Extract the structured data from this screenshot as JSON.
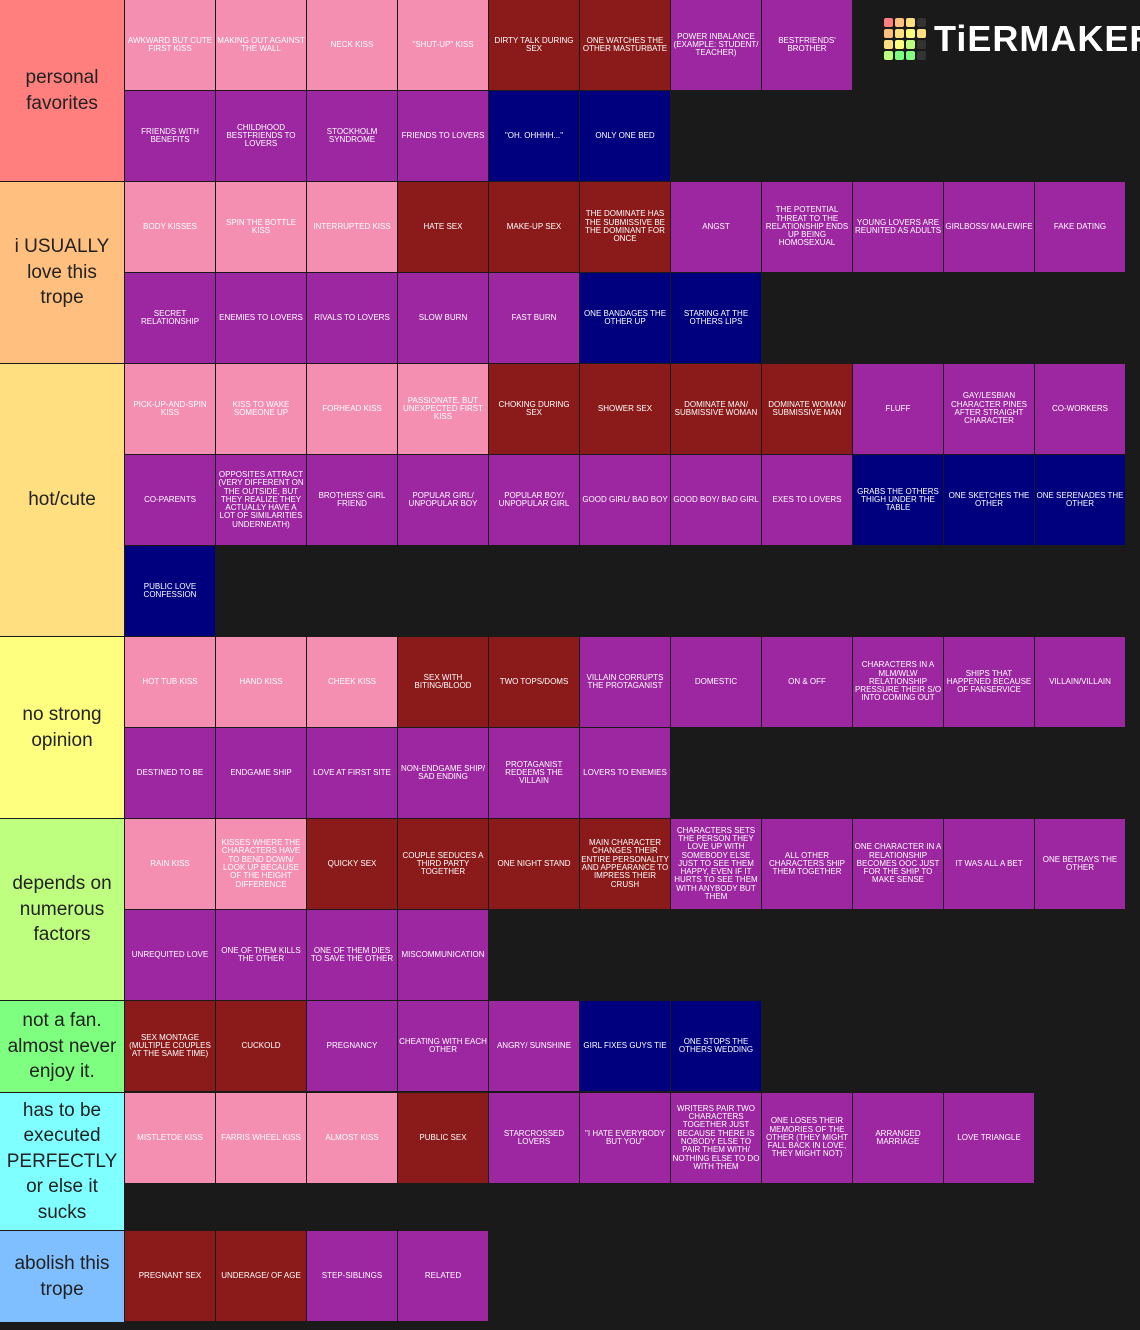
{
  "logo": "TiERMAKER",
  "tiers": [
    {
      "label": "personal favorites",
      "color": "#ff7f7f",
      "items": [
        {
          "text": "AWKWARD BUT CUTE FIRST KISS",
          "color": "#f48fb1"
        },
        {
          "text": "MAKING OUT AGAINST THE WALL",
          "color": "#f48fb1"
        },
        {
          "text": "NECK KISS",
          "color": "#f48fb1"
        },
        {
          "text": "\"SHUT-UP\" KISS",
          "color": "#f48fb1"
        },
        {
          "text": "DIRTY TALK DURING SEX",
          "color": "#8b1a1a"
        },
        {
          "text": "ONE WATCHES THE OTHER MASTURBATE",
          "color": "#8b1a1a"
        },
        {
          "text": "POWER INBALANCE (EXAMPLE: STUDENT/ TEACHER)",
          "color": "#9c27a0"
        },
        {
          "text": "BESTFRIENDS' BROTHER",
          "color": "#9c27a0"
        },
        {
          "text": "FRIENDS WITH BENEFITS",
          "color": "#9c27a0"
        },
        {
          "text": "CHILDHOOD BESTFRIENDS TO LOVERS",
          "color": "#9c27a0"
        },
        {
          "text": "STOCKHOLM SYNDROME",
          "color": "#9c27a0"
        },
        {
          "text": "FRIENDS TO LOVERS",
          "color": "#9c27a0"
        },
        {
          "text": "\"oh. OHHHH...\"",
          "color": "#00007f"
        },
        {
          "text": "ONLY ONE BED",
          "color": "#00007f"
        }
      ]
    },
    {
      "label": "i USUALLY love this trope",
      "color": "#ffbf7f",
      "items": [
        {
          "text": "BODY KISSES",
          "color": "#f48fb1"
        },
        {
          "text": "SPIN THE BOTTLE KISS",
          "color": "#f48fb1"
        },
        {
          "text": "INTERRUPTED KISS",
          "color": "#f48fb1"
        },
        {
          "text": "HATE SEX",
          "color": "#8b1a1a"
        },
        {
          "text": "MAKE-UP SEX",
          "color": "#8b1a1a"
        },
        {
          "text": "THE DOMINATE HAS THE SUBMISSIVE BE THE DOMINANT FOR ONCE",
          "color": "#8b1a1a"
        },
        {
          "text": "ANGST",
          "color": "#9c27a0"
        },
        {
          "text": "THE POTENTIAL THREAT TO THE RELATIONSHIP ENDS UP BEING HOMOSEXUAL",
          "color": "#9c27a0"
        },
        {
          "text": "YOUNG LOVERS ARE REUNITED AS ADULTS",
          "color": "#9c27a0"
        },
        {
          "text": "GIRLBOSS/ MALEWIFE",
          "color": "#9c27a0"
        },
        {
          "text": "FAKE DATING",
          "color": "#9c27a0"
        },
        {
          "text": "SECRET RELATIONSHIP",
          "color": "#9c27a0"
        },
        {
          "text": "ENEMIES TO LOVERS",
          "color": "#9c27a0"
        },
        {
          "text": "RIVALS TO LOVERS",
          "color": "#9c27a0"
        },
        {
          "text": "SLOW BURN",
          "color": "#9c27a0"
        },
        {
          "text": "FAST BURN",
          "color": "#9c27a0"
        },
        {
          "text": "ONE BANDAGES THE OTHER UP",
          "color": "#00007f"
        },
        {
          "text": "STARING AT THE OTHERS LIPS",
          "color": "#00007f"
        }
      ]
    },
    {
      "label": "hot/cute",
      "color": "#ffdf7f",
      "items": [
        {
          "text": "PICK-UP-AND-SPIN KISS",
          "color": "#f48fb1"
        },
        {
          "text": "KISS TO WAKE SOMEONE UP",
          "color": "#f48fb1"
        },
        {
          "text": "FORHEAD KISS",
          "color": "#f48fb1"
        },
        {
          "text": "PASSIONATE, BUT UNEXPECTED FIRST KISS",
          "color": "#f48fb1"
        },
        {
          "text": "CHOKING DURING SEX",
          "color": "#8b1a1a"
        },
        {
          "text": "SHOWER SEX",
          "color": "#8b1a1a"
        },
        {
          "text": "DOMINATE MAN/ SUBMISSIVE WOMAN",
          "color": "#8b1a1a"
        },
        {
          "text": "DOMINATE WOMAN/ SUBMISSIVE MAN",
          "color": "#8b1a1a"
        },
        {
          "text": "FLUFF",
          "color": "#9c27a0"
        },
        {
          "text": "GAY/LESBIAN CHARACTER PINES AFTER STRAIGHT CHARACTER",
          "color": "#9c27a0"
        },
        {
          "text": "CO-WORKERS",
          "color": "#9c27a0"
        },
        {
          "text": "CO-PARENTS",
          "color": "#9c27a0"
        },
        {
          "text": "OPPOSITES ATTRACT (VERY DIFFERENT ON THE OUTSIDE, BUT THEY REALIZE THEY ACTUALLY HAVE A LOT OF SIMILARITIES UNDERNEATH)",
          "color": "#9c27a0"
        },
        {
          "text": "BROTHERS' GIRL FRIEND",
          "color": "#9c27a0"
        },
        {
          "text": "POPULAR GIRL/ UNPOPULAR BOY",
          "color": "#9c27a0"
        },
        {
          "text": "POPULAR BOY/ UNPOPULAR GIRL",
          "color": "#9c27a0"
        },
        {
          "text": "GOOD GIRL/ BAD BOY",
          "color": "#9c27a0"
        },
        {
          "text": "GOOD BOY/ BAD GIRL",
          "color": "#9c27a0"
        },
        {
          "text": "EXES TO LOVERS",
          "color": "#9c27a0"
        },
        {
          "text": "GRABS THE OTHERS THIGH UNDER THE TABLE",
          "color": "#00007f"
        },
        {
          "text": "ONE SKETCHES THE OTHER",
          "color": "#00007f"
        },
        {
          "text": "ONE SERENADES THE OTHER",
          "color": "#00007f"
        },
        {
          "text": "PUBLIC LOVE CONFESSION",
          "color": "#00007f"
        }
      ]
    },
    {
      "label": "no strong opinion",
      "color": "#ffff7f",
      "items": [
        {
          "text": "HOT TUB KISS",
          "color": "#f48fb1"
        },
        {
          "text": "HAND KISS",
          "color": "#f48fb1"
        },
        {
          "text": "CHEEK KISS",
          "color": "#f48fb1"
        },
        {
          "text": "SEX WITH BITING/BLOOD",
          "color": "#8b1a1a"
        },
        {
          "text": "TWO TOPS/DOMS",
          "color": "#8b1a1a"
        },
        {
          "text": "VILLAIN CORRUPTS THE PROTAGANIST",
          "color": "#9c27a0"
        },
        {
          "text": "DOMESTIC",
          "color": "#9c27a0"
        },
        {
          "text": "ON & OFF",
          "color": "#9c27a0"
        },
        {
          "text": "CHARACTERS IN A MLM/WLW RELATIONSHIP PRESSURE THEIR S/O INTO COMING OUT",
          "color": "#9c27a0"
        },
        {
          "text": "SHIPS THAT HAPPENED BECAUSE OF FANSERVICE",
          "color": "#9c27a0"
        },
        {
          "text": "VILLAIN/VILLAIN",
          "color": "#9c27a0"
        },
        {
          "text": "DESTINED TO BE",
          "color": "#9c27a0"
        },
        {
          "text": "ENDGAME SHIP",
          "color": "#9c27a0"
        },
        {
          "text": "LOVE AT FIRST SITE",
          "color": "#9c27a0"
        },
        {
          "text": "NON-ENDGAME SHIP/ SAD ENDING",
          "color": "#9c27a0"
        },
        {
          "text": "PROTAGANIST REDEEMS THE VILLAIN",
          "color": "#9c27a0"
        },
        {
          "text": "LOVERS TO ENEMIES",
          "color": "#9c27a0"
        }
      ]
    },
    {
      "label": "depends on numerous factors",
      "color": "#bfff7f",
      "items": [
        {
          "text": "RAIN KISS",
          "color": "#f48fb1"
        },
        {
          "text": "KISSES WHERE THE CHARACTERS HAVE TO BEND DOWN/ LOOK UP BECAUSE OF THE HEIGHT DIFFERENCE",
          "color": "#f48fb1"
        },
        {
          "text": "QUICKY SEX",
          "color": "#8b1a1a"
        },
        {
          "text": "COUPLE SEDUCES A THIRD PARTY TOGETHER",
          "color": "#8b1a1a"
        },
        {
          "text": "ONE NIGHT STAND",
          "color": "#8b1a1a"
        },
        {
          "text": "MAIN CHARACTER CHANGES THEIR ENTIRE PERSONALITY AND APPEARANCE TO IMPRESS THEIR CRUSH",
          "color": "#8b1a1a"
        },
        {
          "text": "CHARACTERS SETS THE PERSON THEY LOVE UP WITH SOMEBODY ELSE JUST TO SEE THEM HAPPY, EVEN IF IT HURTS TO SEE THEM WITH ANYBODY BUT THEM",
          "color": "#9c27a0"
        },
        {
          "text": "ALL OTHER CHARACTERS SHIP THEM TOGETHER",
          "color": "#9c27a0"
        },
        {
          "text": "ONE CHARACTER IN A RELATIONSHIP BECOMES OOC JUST FOR THE SHIP TO MAKE SENSE",
          "color": "#9c27a0"
        },
        {
          "text": "IT WAS ALL A BET",
          "color": "#9c27a0"
        },
        {
          "text": "ONE BETRAYS THE OTHER",
          "color": "#9c27a0"
        },
        {
          "text": "UNREQUITED LOVE",
          "color": "#9c27a0"
        },
        {
          "text": "ONE OF THEM KILLS THE OTHER",
          "color": "#9c27a0"
        },
        {
          "text": "ONE OF THEM DIES TO SAVE THE OTHER",
          "color": "#9c27a0"
        },
        {
          "text": "MISCOMMUNICATION",
          "color": "#9c27a0"
        }
      ]
    },
    {
      "label": "not a fan. almost never enjoy it.",
      "color": "#7fff7f",
      "items": [
        {
          "text": "SEX MONTAGE (MULTIPLE COUPLES AT THE SAME TIME)",
          "color": "#8b1a1a"
        },
        {
          "text": "CUCKOLD",
          "color": "#8b1a1a"
        },
        {
          "text": "PREGNANCY",
          "color": "#9c27a0"
        },
        {
          "text": "CHEATING WITH EACH OTHER",
          "color": "#9c27a0"
        },
        {
          "text": "ANGRY/ SUNSHINE",
          "color": "#9c27a0"
        },
        {
          "text": "GIRL FIXES GUYS TIE",
          "color": "#00007f"
        },
        {
          "text": "ONE STOPS THE OTHERS WEDDING",
          "color": "#00007f"
        }
      ]
    },
    {
      "label": "has to be executed PERFECTLY or else it sucks",
      "color": "#7fffff",
      "items": [
        {
          "text": "MISTLETOE KISS",
          "color": "#f48fb1"
        },
        {
          "text": "FARRIS WHEEL KISS",
          "color": "#f48fb1"
        },
        {
          "text": "ALMOST KISS",
          "color": "#f48fb1"
        },
        {
          "text": "PUBLIC SEX",
          "color": "#8b1a1a"
        },
        {
          "text": "STARCROSSED LOVERS",
          "color": "#9c27a0"
        },
        {
          "text": "\"I HATE EVERYBODY BUT YOU\"",
          "color": "#9c27a0"
        },
        {
          "text": "WRITERS PAIR TWO CHARACTERS TOGETHER JUST BECAUSE THERE IS NOBODY ELSE TO PAIR THEM WITH/ NOTHING ELSE TO DO WITH THEM",
          "color": "#9c27a0"
        },
        {
          "text": "ONE LOSES THEIR MEMORIES OF THE OTHER (THEY MIGHT FALL BACK IN LOVE, THEY MIGHT NOT)",
          "color": "#9c27a0"
        },
        {
          "text": "ARRANGED MARRIAGE",
          "color": "#9c27a0"
        },
        {
          "text": "LOVE TRIANGLE",
          "color": "#9c27a0"
        }
      ]
    },
    {
      "label": "abolish this trope",
      "color": "#7fbfff",
      "items": [
        {
          "text": "PREGNANT SEX",
          "color": "#8b1a1a"
        },
        {
          "text": "UNDERAGE/ OF AGE",
          "color": "#8b1a1a"
        },
        {
          "text": "STEP-SIBLINGS",
          "color": "#9c27a0"
        },
        {
          "text": "RELATED",
          "color": "#9c27a0"
        }
      ]
    }
  ]
}
